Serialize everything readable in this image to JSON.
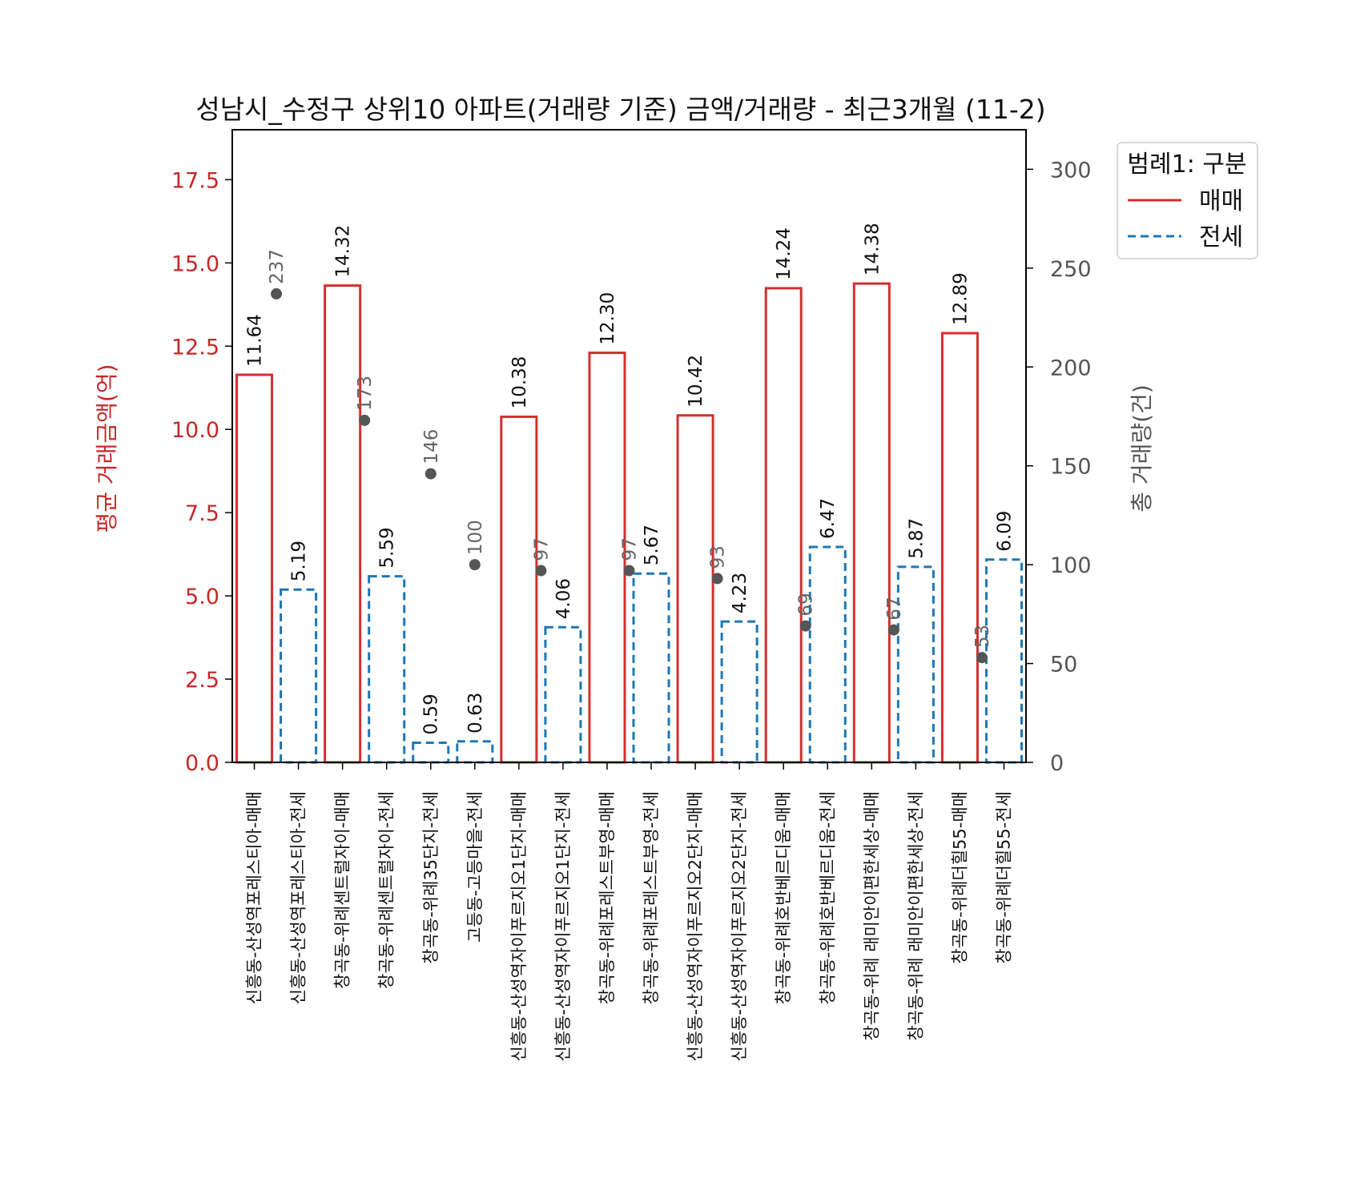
{
  "chart_data": {
    "type": "bar",
    "title": "성남시_수정구 상위10 아파트(거래량 기준) 금액/거래량 - 최근3개월 (11-2)",
    "ylabel": "평균 거래금액(억)",
    "y2label": "총 거래량(건)",
    "ylim": [
      0,
      19
    ],
    "y2lim": [
      0,
      320
    ],
    "yticks": [
      "0.0",
      "2.5",
      "5.0",
      "7.5",
      "10.0",
      "12.5",
      "15.0",
      "17.5"
    ],
    "y2ticks": [
      "0",
      "50",
      "100",
      "150",
      "200",
      "250",
      "300"
    ],
    "grid": false,
    "legend": {
      "title": "범례1: 구분",
      "placement": "outside-top-right",
      "entries": [
        {
          "label": "매매",
          "color": "#d32f2f",
          "style": "solid"
        },
        {
          "label": "전세",
          "color": "#1f77b4",
          "style": "dashed"
        }
      ]
    },
    "categories": [
      "신흥동-산성역포레스티아-매매",
      "신흥동-산성역포레스티아-전세",
      "창곡동-위례센트럴자이-매매",
      "창곡동-위례센트럴자이-전세",
      "창곡동-위례35단지-전세",
      "고등동-고등마을-전세",
      "신흥동-산성역자이푸르지오1단지-매매",
      "신흥동-산성역자이푸르지오1단지-전세",
      "창곡동-위례포레스트부영-매매",
      "창곡동-위례포레스트부영-전세",
      "신흥동-산성역자이푸르지오2단지-매매",
      "신흥동-산성역자이푸르지오2단지-전세",
      "창곡동-위례호반베르디움-매매",
      "창곡동-위례호반베르디움-전세",
      "창곡동-위례 래미안이편한세상-매매",
      "창곡동-위례 래미안이편한세상-전세",
      "창곡동-위례더힐55-매매",
      "창곡동-위례더힐55-전세"
    ],
    "series": [
      {
        "name": "평균 거래금액(억)",
        "axis": "left",
        "values": [
          11.64,
          5.19,
          14.32,
          5.59,
          0.59,
          0.63,
          10.38,
          4.06,
          12.3,
          5.67,
          10.42,
          4.23,
          14.24,
          6.47,
          14.38,
          5.87,
          12.89,
          6.09
        ],
        "labels": [
          "11.64",
          "5.19",
          "14.32",
          "5.59",
          "0.59",
          "0.63",
          "10.38",
          "4.06",
          "12.30",
          "5.67",
          "10.42",
          "4.23",
          "14.24",
          "6.47",
          "14.38",
          "5.87",
          "12.89",
          "6.09"
        ],
        "kinds": [
          "매매",
          "전세",
          "매매",
          "전세",
          "전세",
          "전세",
          "매매",
          "전세",
          "매매",
          "전세",
          "매매",
          "전세",
          "매매",
          "전세",
          "매매",
          "전세",
          "매매",
          "전세"
        ]
      },
      {
        "name": "총 거래량(건)",
        "axis": "right",
        "type": "scatter",
        "color": "#555555",
        "points": [
          {
            "x": 0.5,
            "value": 237,
            "label": "237"
          },
          {
            "x": 2.5,
            "value": 173,
            "label": "173"
          },
          {
            "x": 4,
            "value": 146,
            "label": "146"
          },
          {
            "x": 5,
            "value": 100,
            "label": "100"
          },
          {
            "x": 6.5,
            "value": 97,
            "label": "97"
          },
          {
            "x": 8.5,
            "value": 97,
            "label": "97"
          },
          {
            "x": 10.5,
            "value": 93,
            "label": "93"
          },
          {
            "x": 12.5,
            "value": 69,
            "label": "69"
          },
          {
            "x": 14.5,
            "value": 67,
            "label": "67"
          },
          {
            "x": 16.5,
            "value": 53,
            "label": "53"
          }
        ]
      }
    ],
    "colors": {
      "매매": "#d32f2f",
      "전세": "#1f77b4",
      "left_axis": "#c62828",
      "right_axis": "#555555"
    }
  }
}
